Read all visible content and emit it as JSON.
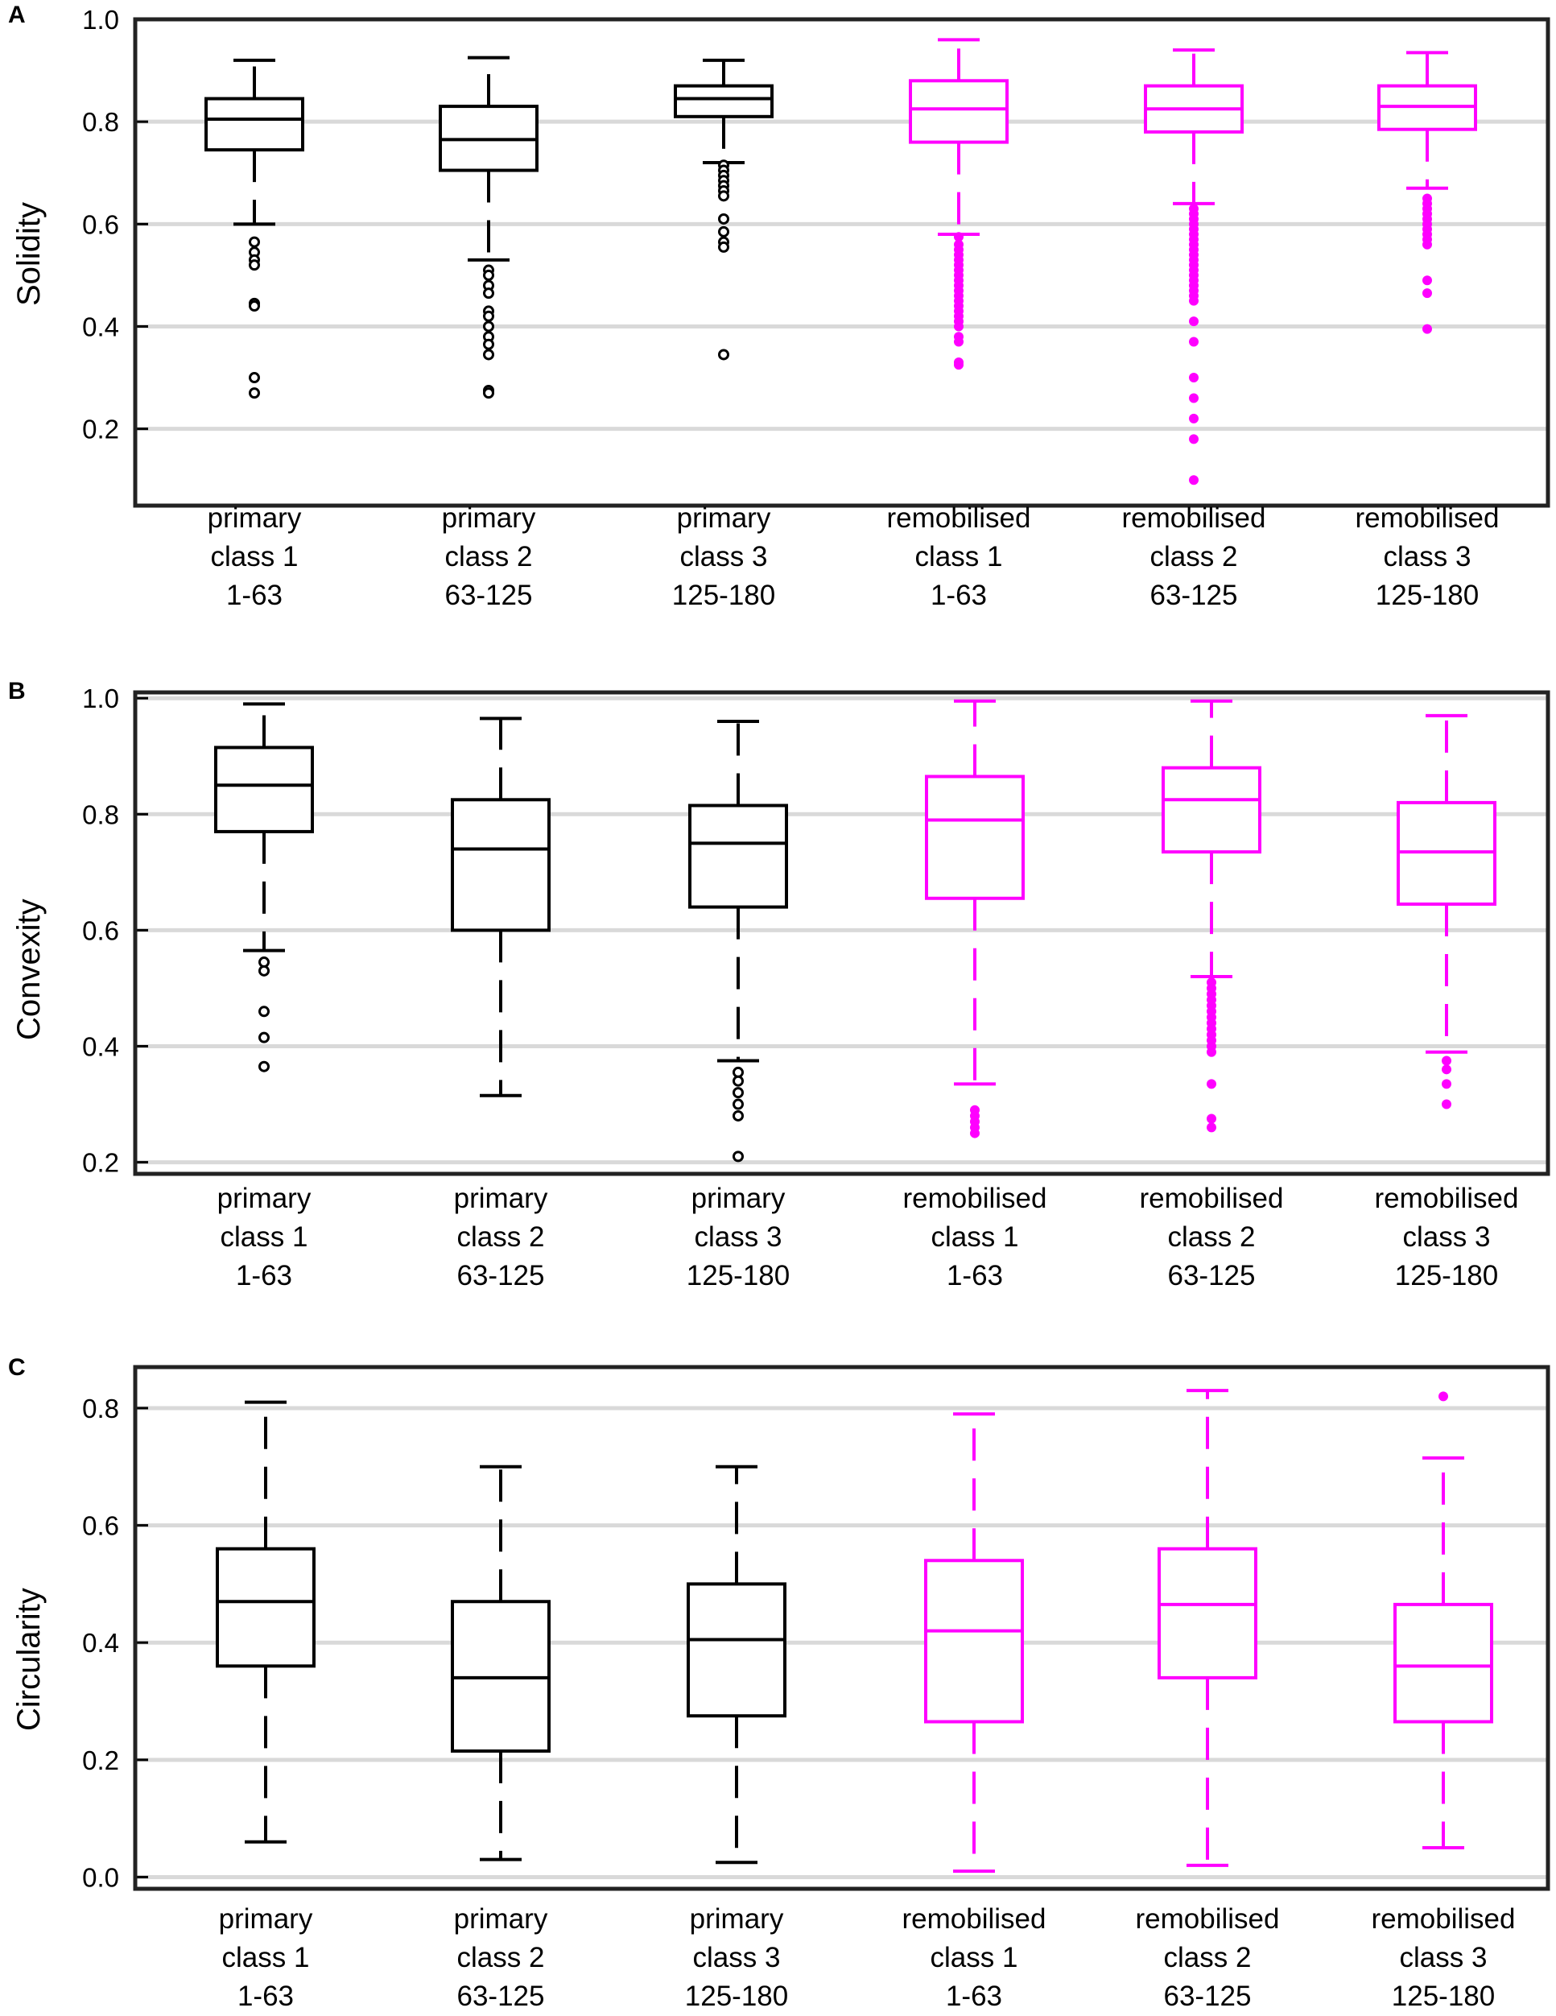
{
  "colors": {
    "primary": "#000000",
    "remobilised": "#ff00ff",
    "grid": "#d9d9d9",
    "frame": "#222222"
  },
  "categories": [
    {
      "name": "primary",
      "cls": "class 1",
      "range": "1-63",
      "group": "primary"
    },
    {
      "name": "primary",
      "cls": "class 2",
      "range": "63-125",
      "group": "primary"
    },
    {
      "name": "primary",
      "cls": "class 3",
      "range": "125-180",
      "group": "primary"
    },
    {
      "name": "remobilised",
      "cls": "class 1",
      "range": "1-63",
      "group": "remobilised"
    },
    {
      "name": "remobilised",
      "cls": "class 2",
      "range": "63-125",
      "group": "remobilised"
    },
    {
      "name": "remobilised",
      "cls": "class 3",
      "range": "125-180",
      "group": "remobilised"
    }
  ],
  "chart_data": [
    {
      "panel": "A",
      "type": "box",
      "ylabel": "Solidity",
      "ylim": [
        0.05,
        1.0
      ],
      "yticks": [
        "1.0",
        "0.8",
        "0.6",
        "0.4",
        "0.2"
      ],
      "ytick_values": [
        1.0,
        0.8,
        0.6,
        0.4,
        0.2
      ],
      "grid": "horizontal",
      "boxes": [
        {
          "whislo": 0.6,
          "q1": 0.745,
          "med": 0.805,
          "q3": 0.845,
          "whishi": 0.92,
          "fliers": [
            0.565,
            0.545,
            0.53,
            0.52,
            0.445,
            0.44,
            0.3,
            0.27
          ]
        },
        {
          "whislo": 0.53,
          "q1": 0.705,
          "med": 0.765,
          "q3": 0.83,
          "whishi": 0.925,
          "fliers": [
            0.51,
            0.5,
            0.48,
            0.465,
            0.43,
            0.42,
            0.4,
            0.38,
            0.365,
            0.345,
            0.275,
            0.27
          ]
        },
        {
          "whislo": 0.72,
          "q1": 0.81,
          "med": 0.845,
          "q3": 0.87,
          "whishi": 0.92,
          "fliers": [
            0.715,
            0.705,
            0.695,
            0.685,
            0.675,
            0.665,
            0.655,
            0.61,
            0.585,
            0.565,
            0.555,
            0.345
          ]
        },
        {
          "whislo": 0.58,
          "q1": 0.76,
          "med": 0.825,
          "q3": 0.88,
          "whishi": 0.96,
          "fliers": [
            0.575,
            0.56,
            0.55,
            0.54,
            0.53,
            0.52,
            0.51,
            0.5,
            0.49,
            0.48,
            0.47,
            0.46,
            0.45,
            0.44,
            0.43,
            0.42,
            0.41,
            0.4,
            0.38,
            0.37,
            0.33,
            0.325
          ]
        },
        {
          "whislo": 0.64,
          "q1": 0.78,
          "med": 0.825,
          "q3": 0.87,
          "whishi": 0.94,
          "fliers": [
            0.63,
            0.62,
            0.61,
            0.6,
            0.59,
            0.58,
            0.57,
            0.56,
            0.55,
            0.54,
            0.53,
            0.52,
            0.51,
            0.5,
            0.49,
            0.48,
            0.47,
            0.46,
            0.45,
            0.41,
            0.37,
            0.3,
            0.26,
            0.22,
            0.18,
            0.1
          ]
        },
        {
          "whislo": 0.67,
          "q1": 0.785,
          "med": 0.83,
          "q3": 0.87,
          "whishi": 0.935,
          "fliers": [
            0.65,
            0.64,
            0.63,
            0.62,
            0.61,
            0.6,
            0.59,
            0.58,
            0.57,
            0.56,
            0.49,
            0.465,
            0.395
          ]
        }
      ]
    },
    {
      "panel": "B",
      "type": "box",
      "ylabel": "Convexity",
      "ylim": [
        0.18,
        1.01
      ],
      "yticks": [
        "1.0",
        "0.8",
        "0.6",
        "0.4",
        "0.2"
      ],
      "ytick_values": [
        1.0,
        0.8,
        0.6,
        0.4,
        0.2
      ],
      "grid": "horizontal",
      "boxes": [
        {
          "whislo": 0.565,
          "q1": 0.77,
          "med": 0.85,
          "q3": 0.915,
          "whishi": 0.99,
          "fliers": [
            0.545,
            0.53,
            0.46,
            0.415,
            0.365
          ]
        },
        {
          "whislo": 0.315,
          "q1": 0.6,
          "med": 0.74,
          "q3": 0.825,
          "whishi": 0.965,
          "fliers": []
        },
        {
          "whislo": 0.375,
          "q1": 0.64,
          "med": 0.75,
          "q3": 0.815,
          "whishi": 0.96,
          "fliers": [
            0.355,
            0.34,
            0.32,
            0.3,
            0.28,
            0.21
          ]
        },
        {
          "whislo": 0.335,
          "q1": 0.655,
          "med": 0.79,
          "q3": 0.865,
          "whishi": 0.995,
          "fliers": [
            0.29,
            0.28,
            0.27,
            0.26,
            0.25
          ]
        },
        {
          "whislo": 0.52,
          "q1": 0.735,
          "med": 0.825,
          "q3": 0.88,
          "whishi": 0.995,
          "fliers": [
            0.51,
            0.5,
            0.49,
            0.48,
            0.47,
            0.46,
            0.45,
            0.44,
            0.43,
            0.42,
            0.41,
            0.4,
            0.39,
            0.335,
            0.275,
            0.26
          ]
        },
        {
          "whislo": 0.39,
          "q1": 0.645,
          "med": 0.735,
          "q3": 0.82,
          "whishi": 0.97,
          "fliers": [
            0.375,
            0.36,
            0.335,
            0.3
          ]
        }
      ]
    },
    {
      "panel": "C",
      "type": "box",
      "ylabel": "Circularity",
      "ylim": [
        -0.02,
        0.87
      ],
      "yticks": [
        "0.8",
        "0.6",
        "0.4",
        "0.2",
        "0.0"
      ],
      "ytick_values": [
        0.8,
        0.6,
        0.4,
        0.2,
        0.0
      ],
      "grid": "horizontal",
      "boxes": [
        {
          "whislo": 0.06,
          "q1": 0.36,
          "med": 0.47,
          "q3": 0.56,
          "whishi": 0.81,
          "fliers": []
        },
        {
          "whislo": 0.03,
          "q1": 0.215,
          "med": 0.34,
          "q3": 0.47,
          "whishi": 0.7,
          "fliers": []
        },
        {
          "whislo": 0.025,
          "q1": 0.275,
          "med": 0.405,
          "q3": 0.5,
          "whishi": 0.7,
          "fliers": []
        },
        {
          "whislo": 0.01,
          "q1": 0.265,
          "med": 0.42,
          "q3": 0.54,
          "whishi": 0.79,
          "fliers": []
        },
        {
          "whislo": 0.02,
          "q1": 0.34,
          "med": 0.465,
          "q3": 0.56,
          "whishi": 0.83,
          "fliers": []
        },
        {
          "whislo": 0.05,
          "q1": 0.265,
          "med": 0.36,
          "q3": 0.465,
          "whishi": 0.715,
          "fliers": [
            0.82
          ]
        }
      ]
    }
  ]
}
